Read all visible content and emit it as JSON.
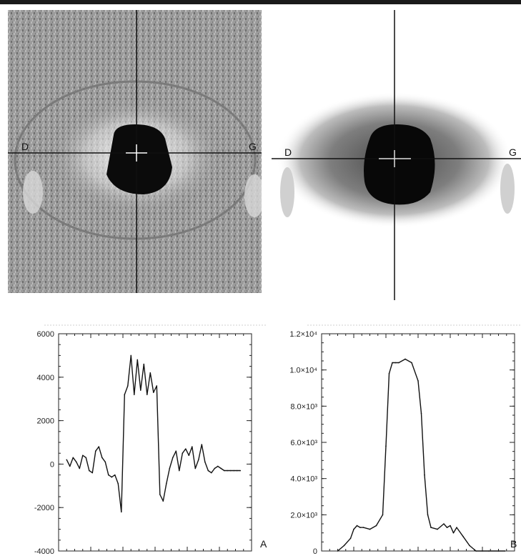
{
  "images": {
    "left": {
      "label_left": "D",
      "label_right": "G"
    },
    "right": {
      "label_left": "D",
      "label_right": "G"
    }
  },
  "chart_data": [
    {
      "type": "line",
      "panel_label": "A",
      "ylim": [
        -4000,
        6000
      ],
      "yticks": [
        {
          "value": 6000,
          "label": "6000"
        },
        {
          "value": 4000,
          "label": "4000"
        },
        {
          "value": 2000,
          "label": "2000"
        },
        {
          "value": 0,
          "label": "0"
        },
        {
          "value": -2000,
          "label": "-2000"
        },
        {
          "value": -4000,
          "label": "-4000"
        }
      ],
      "xlim": [
        0,
        120
      ],
      "x": [
        5,
        7,
        9,
        11,
        13,
        15,
        17,
        19,
        21,
        23,
        25,
        27,
        29,
        31,
        33,
        35,
        37,
        39,
        41,
        43,
        45,
        47,
        49,
        51,
        53,
        55,
        57,
        59,
        61,
        63,
        65,
        67,
        69,
        71,
        73,
        75,
        77,
        79,
        81,
        83,
        85,
        87,
        89,
        91,
        93,
        95,
        97,
        99,
        101,
        103,
        105,
        107,
        109,
        111,
        113
      ],
      "values": [
        200,
        -100,
        300,
        100,
        -200,
        400,
        300,
        -300,
        -400,
        600,
        800,
        300,
        100,
        -500,
        -600,
        -500,
        -900,
        -2200,
        3200,
        3600,
        5000,
        3200,
        4800,
        3400,
        4600,
        3200,
        4200,
        3300,
        3600,
        -1400,
        -1700,
        -900,
        -200,
        300,
        600,
        -300,
        500,
        700,
        400,
        800,
        -200,
        200,
        900,
        100,
        -300,
        -400,
        -200,
        -100,
        -200,
        -300,
        -300,
        -300,
        -300,
        -300,
        -300
      ]
    },
    {
      "type": "line",
      "panel_label": "B",
      "ylim": [
        0,
        12000
      ],
      "yticks": [
        {
          "value": 12000,
          "label": "1.2×10⁴"
        },
        {
          "value": 10000,
          "label": "1.0×10⁴"
        },
        {
          "value": 8000,
          "label": "8.0×10³"
        },
        {
          "value": 6000,
          "label": "6.0×10³"
        },
        {
          "value": 4000,
          "label": "4.0×10³"
        },
        {
          "value": 2000,
          "label": "2.0×10³"
        },
        {
          "value": 0,
          "label": "0"
        }
      ],
      "xlim": [
        0,
        120
      ],
      "x": [
        10,
        14,
        18,
        20,
        22,
        24,
        26,
        30,
        34,
        38,
        40,
        42,
        44,
        46,
        48,
        52,
        56,
        60,
        62,
        64,
        66,
        68,
        72,
        76,
        78,
        80,
        82,
        84,
        88,
        92,
        96,
        100,
        104,
        110,
        114
      ],
      "values": [
        0,
        300,
        700,
        1200,
        1400,
        1300,
        1300,
        1200,
        1400,
        2000,
        5800,
        9800,
        10400,
        10400,
        10400,
        10600,
        10400,
        9400,
        7600,
        4200,
        2000,
        1300,
        1200,
        1500,
        1300,
        1400,
        1000,
        1300,
        800,
        300,
        0,
        0,
        0,
        0,
        0
      ]
    }
  ]
}
